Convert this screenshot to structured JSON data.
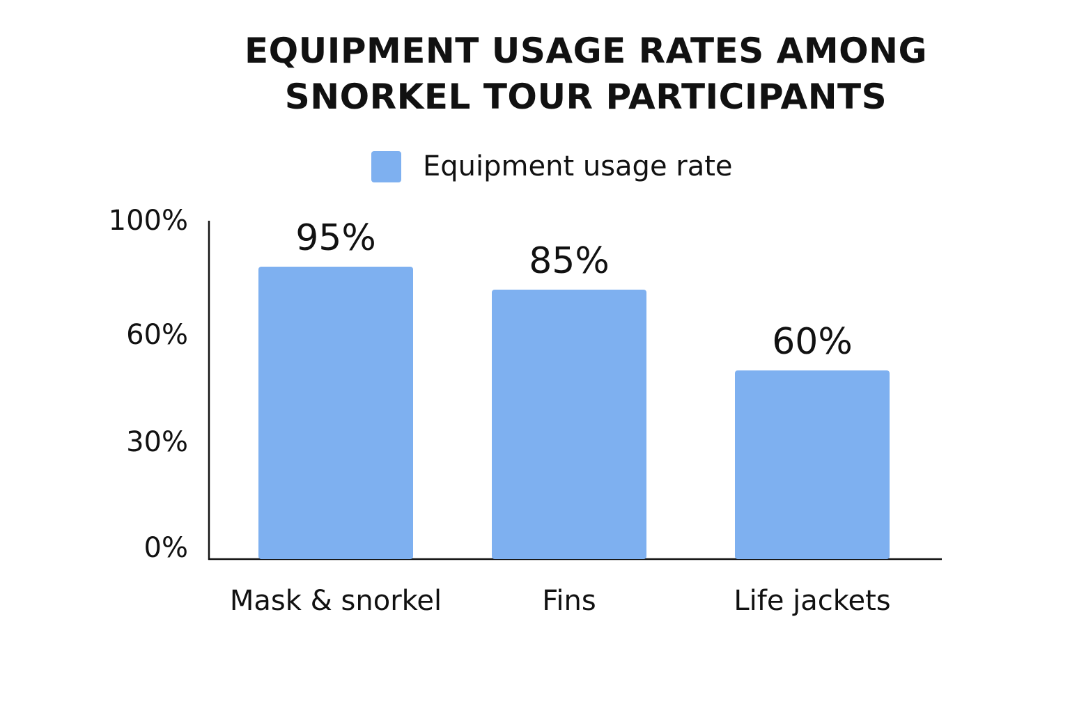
{
  "chart_data": {
    "type": "bar",
    "title_lines": [
      "EQUIPMENT USAGE RATES AMONG",
      "SNORKEL TOUR PARTICIPANTS"
    ],
    "categories": [
      "Mask & snorkel",
      "Fins",
      "Life jackets"
    ],
    "series": [
      {
        "name": "Equipment usage rate",
        "values": [
          95,
          85,
          60
        ],
        "data_labels": [
          "95%",
          "85%",
          "60%"
        ],
        "color": "#7eb0f0"
      }
    ],
    "xlabel": "",
    "ylabel": "",
    "yticks": [
      {
        "value": 0,
        "label": "0%"
      },
      {
        "value": 30,
        "label": "30%"
      },
      {
        "value": 60,
        "label": "60%"
      },
      {
        "value": 100,
        "label": "100%"
      }
    ],
    "ylim": [
      0,
      100
    ],
    "grid": false,
    "legend_position": "top-center"
  }
}
